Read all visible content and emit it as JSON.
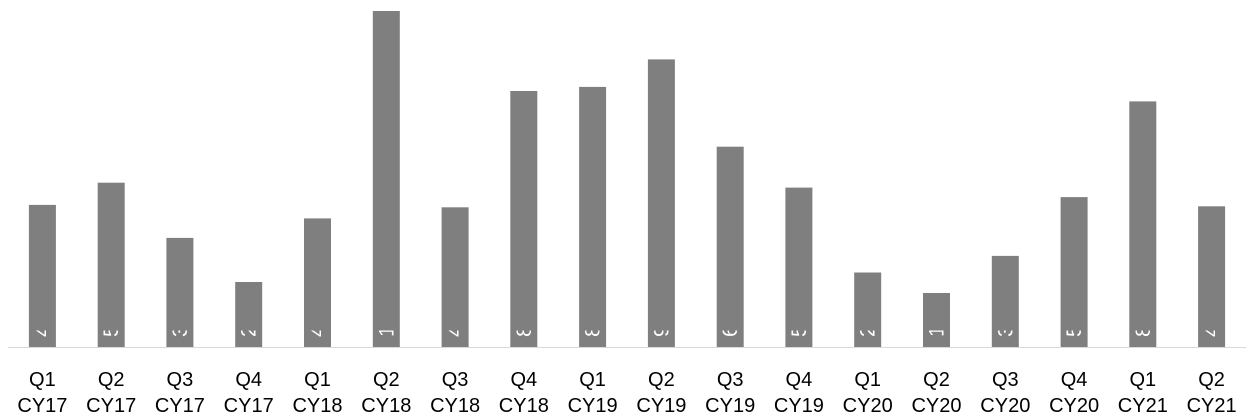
{
  "chart_data": {
    "type": "bar",
    "categories": [
      [
        "Q1",
        "CY17"
      ],
      [
        "Q2",
        "CY17"
      ],
      [
        "Q3",
        "CY17"
      ],
      [
        "Q4",
        "CY17"
      ],
      [
        "Q1",
        "CY18"
      ],
      [
        "Q2",
        "CY18"
      ],
      [
        "Q3",
        "CY18"
      ],
      [
        "Q4",
        "CY18"
      ],
      [
        "Q1",
        "CY19"
      ],
      [
        "Q2",
        "CY19"
      ],
      [
        "Q3",
        "CY19"
      ],
      [
        "Q4",
        "CY19"
      ],
      [
        "Q1",
        "CY20"
      ],
      [
        "Q2",
        "CY20"
      ],
      [
        "Q3",
        "CY20"
      ],
      [
        "Q4",
        "CY20"
      ],
      [
        "Q1",
        "CY21"
      ],
      [
        "Q2",
        "CY21"
      ]
    ],
    "values": [
      4863,
      5624,
      3733,
      2226,
      4402,
      11498,
      4779,
      8761,
      8899,
      9841,
      6855,
      5456,
      2548,
      1848,
      3118,
      5131,
      8403,
      4816
    ],
    "data_labels": [
      "4,863",
      "5,624",
      "3,733",
      "2,226",
      "4,402",
      "11,498",
      "4,779",
      "8,761",
      "8,899",
      "9,841",
      "6,855",
      "5,456",
      "2,548",
      "1,848",
      "3,118",
      "5,131",
      "8,403",
      "4,816"
    ],
    "ylim": [
      0,
      11498
    ],
    "bar_color": "#7f7f7f",
    "label_color": "#ffffff",
    "axis_color": "#d9d9d9",
    "grid": false,
    "legend": "none"
  }
}
